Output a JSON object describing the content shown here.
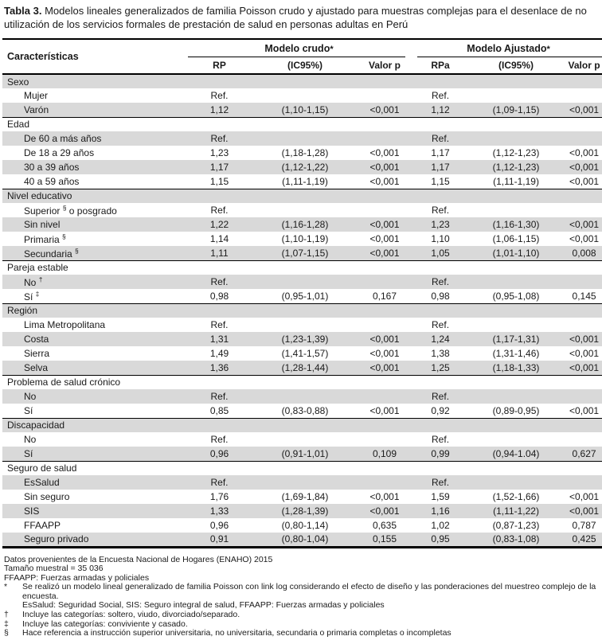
{
  "title": {
    "label": "Tabla 3.",
    "text": "Modelos lineales generalizados de familia Poisson crudo y ajustado para muestras complejas para el desenlace de no utilización de los servicios formales de prestación de salud en personas adultas en Perú"
  },
  "table": {
    "col_header": "Características",
    "groups": [
      {
        "label": "Modelo crudo",
        "sup": "*",
        "cols": [
          "RP",
          "(IC95%)",
          "Valor p"
        ]
      },
      {
        "label": "Modelo Ajustado",
        "sup": "*",
        "cols": [
          "RPa",
          "(IC95%)",
          "Valor p"
        ]
      }
    ],
    "rows": [
      {
        "type": "section",
        "pre": "Sexo"
      },
      {
        "type": "data",
        "pre": "Mujer",
        "values": [
          "Ref.",
          "",
          "",
          "Ref.",
          "",
          ""
        ]
      },
      {
        "type": "data",
        "pre": "Varón",
        "values": [
          "1,12",
          "(1,10-1,15)",
          "<0,001",
          "1,12",
          "(1,09-1,15)",
          "<0,001"
        ]
      },
      {
        "type": "section",
        "pre": "Edad"
      },
      {
        "type": "data",
        "pre": "De 60 a más años",
        "values": [
          "Ref.",
          "",
          "",
          "Ref.",
          "",
          ""
        ]
      },
      {
        "type": "data",
        "pre": "De 18 a 29 años",
        "values": [
          "1,23",
          "(1,18-1,28)",
          "<0,001",
          "1,17",
          "(1,12-1,23)",
          "<0,001"
        ]
      },
      {
        "type": "data",
        "pre": "30 a 39 años",
        "values": [
          "1,17",
          "(1,12-1,22)",
          "<0,001",
          "1,17",
          "(1,12-1,23)",
          "<0,001"
        ]
      },
      {
        "type": "data",
        "pre": "40 a 59 años",
        "values": [
          "1,15",
          "(1,11-1,19)",
          "<0,001",
          "1,15",
          "(1,11-1,19)",
          "<0,001"
        ]
      },
      {
        "type": "section",
        "pre": "Nivel educativo"
      },
      {
        "type": "data",
        "pre": "Superior ",
        "sup": "§",
        "post": " o posgrado",
        "values": [
          "Ref.",
          "",
          "",
          "Ref.",
          "",
          ""
        ]
      },
      {
        "type": "data",
        "pre": "Sin nivel",
        "values": [
          "1,22",
          "(1,16-1,28)",
          "<0,001",
          "1,23",
          "(1,16-1,30)",
          "<0,001"
        ]
      },
      {
        "type": "data",
        "pre": "Primaria ",
        "sup": "§",
        "values": [
          "1,14",
          "(1,10-1,19)",
          "<0,001",
          "1,10",
          "(1,06-1,15)",
          "<0,001"
        ]
      },
      {
        "type": "data",
        "pre": "Secundaria ",
        "sup": "§",
        "values": [
          "1,11",
          "(1,07-1,15)",
          "<0,001",
          "1,05",
          "(1,01-1,10)",
          "0,008"
        ]
      },
      {
        "type": "section",
        "pre": "Pareja estable"
      },
      {
        "type": "data",
        "pre": "No ",
        "sup": "†",
        "values": [
          "Ref.",
          "",
          "",
          "Ref.",
          "",
          ""
        ]
      },
      {
        "type": "data",
        "pre": "Sí ",
        "sup": "‡",
        "values": [
          "0,98",
          "(0,95-1,01)",
          "0,167",
          "0,98",
          "(0,95-1,08)",
          "0,145"
        ]
      },
      {
        "type": "section",
        "pre": "Región"
      },
      {
        "type": "data",
        "pre": "Lima Metropolitana",
        "values": [
          "Ref.",
          "",
          "",
          "Ref.",
          "",
          ""
        ]
      },
      {
        "type": "data",
        "pre": "Costa",
        "values": [
          "1,31",
          "(1,23-1,39)",
          "<0,001",
          "1,24",
          "(1,17-1,31)",
          "<0,001"
        ]
      },
      {
        "type": "data",
        "pre": "Sierra",
        "values": [
          "1,49",
          "(1,41-1,57)",
          "<0,001",
          "1,38",
          "(1,31-1,46)",
          "<0,001"
        ]
      },
      {
        "type": "data",
        "pre": "Selva",
        "values": [
          "1,36",
          "(1,28-1,44)",
          "<0,001",
          "1,25",
          "(1,18-1,33)",
          "<0,001"
        ]
      },
      {
        "type": "section",
        "pre": "Problema de salud crónico"
      },
      {
        "type": "data",
        "pre": "No",
        "values": [
          "Ref.",
          "",
          "",
          "Ref.",
          "",
          ""
        ]
      },
      {
        "type": "data",
        "pre": "Sí",
        "values": [
          "0,85",
          "(0,83-0,88)",
          "<0,001",
          "0,92",
          "(0,89-0,95)",
          "<0,001"
        ]
      },
      {
        "type": "section",
        "pre": "Discapacidad"
      },
      {
        "type": "data",
        "pre": "No",
        "values": [
          "Ref.",
          "",
          "",
          "Ref.",
          "",
          ""
        ]
      },
      {
        "type": "data",
        "pre": "Sí",
        "values": [
          "0,96",
          "(0,91-1,01)",
          "0,109",
          "0,99",
          "(0,94-1.04)",
          "0,627"
        ]
      },
      {
        "type": "section",
        "pre": "Seguro de salud"
      },
      {
        "type": "data",
        "pre": "EsSalud",
        "values": [
          "Ref.",
          "",
          "",
          "Ref.",
          "",
          ""
        ]
      },
      {
        "type": "data",
        "pre": "Sin seguro",
        "values": [
          "1,76",
          "(1,69-1,84)",
          "<0,001",
          "1,59",
          "(1,52-1,66)",
          "<0,001"
        ]
      },
      {
        "type": "data",
        "pre": "SIS",
        "values": [
          "1,33",
          "(1,28-1,39)",
          "<0,001",
          "1,16",
          "(1,11-1,22)",
          "<0,001"
        ]
      },
      {
        "type": "data",
        "pre": "FFAAPP",
        "values": [
          "0,96",
          "(0,80-1,14)",
          "0,635",
          "1,02",
          "(0,87-1,23)",
          "0,787"
        ]
      },
      {
        "type": "data",
        "pre": "Seguro privado",
        "values": [
          "0,91",
          "(0,80-1,04)",
          "0,155",
          "0,95",
          "(0,83-1,08)",
          "0,425"
        ]
      }
    ]
  },
  "footnotes": [
    {
      "marker": "",
      "style": "plain",
      "text": "Datos provenientes de la Encuesta Nacional de Hogares (ENAHO) 2015"
    },
    {
      "marker": "",
      "style": "plain",
      "text": "Tamaño muestral = 35 036"
    },
    {
      "marker": "",
      "style": "plain",
      "text": "FFAAPP: Fuerzas armadas y policiales"
    },
    {
      "marker": "*",
      "style": "marked",
      "text": "Se realizó un modelo lineal generalizado de familia Poisson con link log considerando el efecto de diseño y las ponderaciones del muestreo complejo de la encuesta."
    },
    {
      "marker": "",
      "style": "cont",
      "text": "EsSalud: Seguridad Social, SIS: Seguro integral de salud, FFAAPP: Fuerzas armadas y policiales"
    },
    {
      "marker": "†",
      "style": "marked",
      "text": "Incluye las categorías: soltero, viudo, divorciado/separado."
    },
    {
      "marker": "‡",
      "style": "marked",
      "text": "Incluye las categorías: conviviente y casado."
    },
    {
      "marker": "§",
      "style": "marked",
      "text": "Hace referencia a instrucción superior universitaria, no universitaria, secundaria o primaria completas o incompletas"
    }
  ]
}
